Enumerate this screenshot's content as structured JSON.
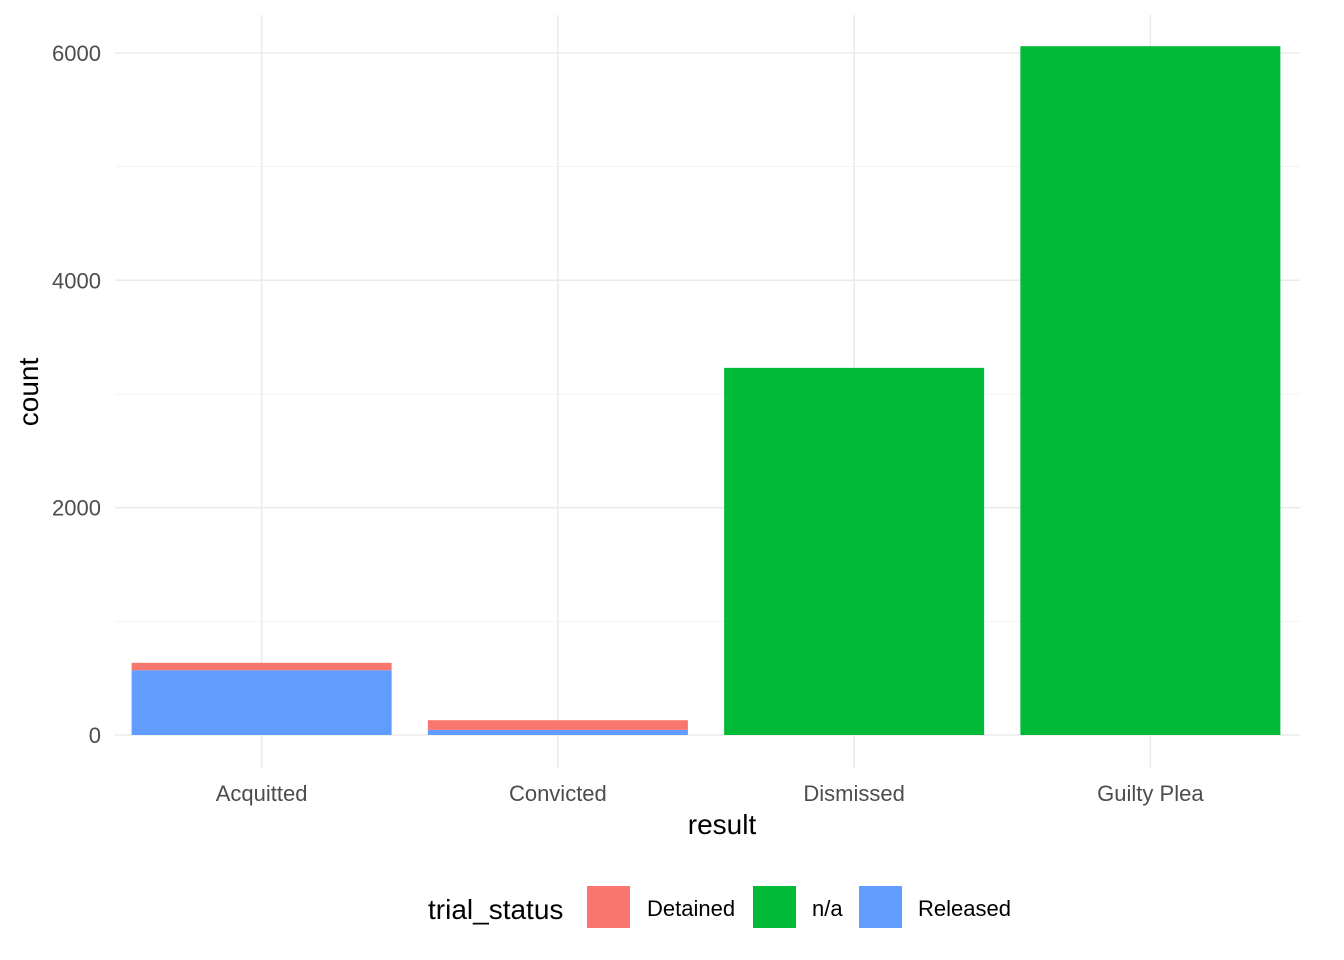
{
  "chart_data": {
    "type": "bar",
    "stacked": true,
    "title": "",
    "xlabel": "result",
    "ylabel": "count",
    "categories": [
      "Acquitted",
      "Convicted",
      "Dismissed",
      "Guilty Plea"
    ],
    "series": [
      {
        "name": "Detained",
        "color": "#F8766D",
        "values": [
          65,
          85,
          0,
          0
        ]
      },
      {
        "name": "n/a",
        "color": "#00BA38",
        "values": [
          0,
          0,
          3230,
          6060
        ]
      },
      {
        "name": "Released",
        "color": "#619CFF",
        "values": [
          570,
          45,
          0,
          0
        ]
      }
    ],
    "stack_order_bottom_to_top": [
      "Released",
      "n/a",
      "Detained"
    ],
    "ylim": [
      0,
      6340
    ],
    "yticks": [
      0,
      2000,
      4000,
      6000
    ],
    "ytick_labels": [
      "0",
      "2000",
      "4000",
      "6000"
    ],
    "grid": true,
    "legend": {
      "title": "trial_status",
      "position": "bottom",
      "items": [
        "Detained",
        "n/a",
        "Released"
      ]
    }
  }
}
